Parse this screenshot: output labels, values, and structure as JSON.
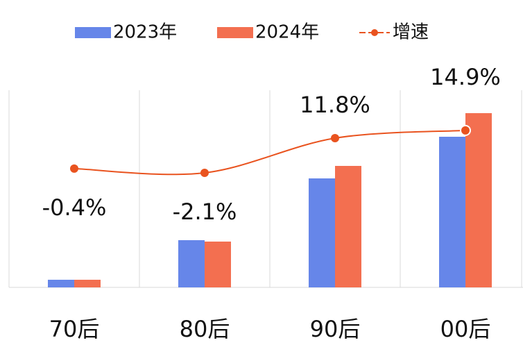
{
  "chart_data": {
    "type": "bar_line",
    "categories": [
      "70后",
      "80后",
      "90后",
      "00后"
    ],
    "series": [
      {
        "name": "2023年",
        "color": "#6686e9",
        "values": [
          11,
          68,
          157,
          217
        ]
      },
      {
        "name": "2024年",
        "color": "#f36f50",
        "values": [
          11,
          66,
          175,
          251
        ]
      },
      {
        "name": "增速",
        "color": "#e9531f",
        "axis": "y2",
        "type": "line",
        "values": [
          -0.4,
          -2.1,
          11.8,
          14.9
        ],
        "value_labels": [
          "-0.4%",
          "-2.1%",
          "11.8%",
          "14.9%"
        ]
      }
    ],
    "ylim": [
      0,
      284
    ],
    "y2lim": [
      -48,
      31
    ],
    "legend": "top"
  }
}
